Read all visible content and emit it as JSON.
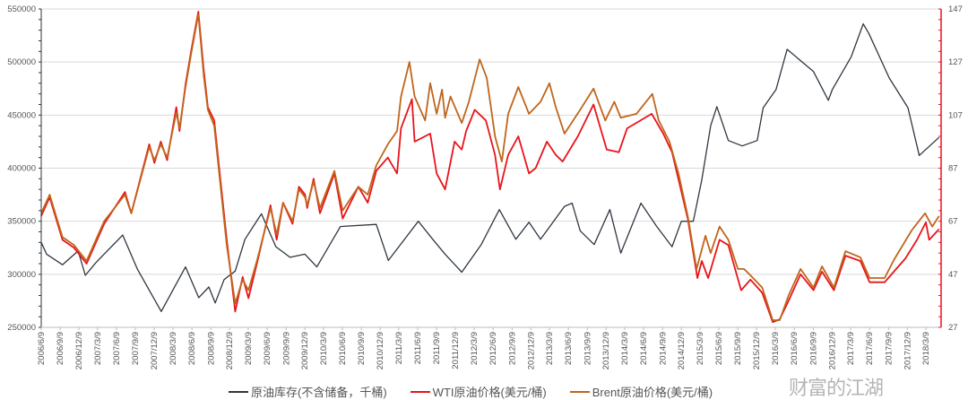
{
  "chart_data": {
    "type": "line",
    "title": "",
    "xlabel": "",
    "ylabel_left": "",
    "ylabel_right": "",
    "y_left_lim": [
      250000,
      550000
    ],
    "y_left_ticks": [
      "250000",
      "300000",
      "350000",
      "400000",
      "450000",
      "500000",
      "550000"
    ],
    "y_right_lim": [
      27,
      147
    ],
    "y_right_ticks": [
      "27",
      "47",
      "67",
      "87",
      "107",
      "127",
      "147"
    ],
    "x_range": [
      "2006-06-09",
      "2018-03-09"
    ],
    "x_ticks": [
      "2006/6/9",
      "2006/9/9",
      "2006/12/9",
      "2007/3/9",
      "2007/6/9",
      "2007/9/9",
      "2007/12/9",
      "2008/3/9",
      "2008/6/9",
      "2008/9/9",
      "2008/12/9",
      "2009/3/9",
      "2009/6/9",
      "2009/9/9",
      "2009/12/9",
      "2010/3/9",
      "2010/6/9",
      "2010/9/9",
      "2010/12/9",
      "2011/3/9",
      "2011/6/9",
      "2011/9/9",
      "2011/12/9",
      "2012/3/9",
      "2012/6/9",
      "2012/9/9",
      "2012/12/9",
      "2013/3/9",
      "2013/6/9",
      "2013/9/9",
      "2013/12/9",
      "2014/3/9",
      "2014/6/9",
      "2014/9/9",
      "2014/12/9",
      "2015/3/9",
      "2015/6/9",
      "2015/9/9",
      "2015/12/9",
      "2016/3/9",
      "2016/6/9",
      "2016/9/9",
      "2016/12/9",
      "2017/3/9",
      "2017/6/9",
      "2017/9/9",
      "2017/12/9",
      "2018/3/9"
    ],
    "grid": true,
    "legend_position": "bottom",
    "series": [
      {
        "name": "原油库存(不含储备，千桶)",
        "axis": "left",
        "color": "#2f3640",
        "points": [
          [
            "2006-06-09",
            330000
          ],
          [
            "2006-07-05",
            319000
          ],
          [
            "2006-09-20",
            309000
          ],
          [
            "2006-12-05",
            322000
          ],
          [
            "2007-01-09",
            299000
          ],
          [
            "2007-03-01",
            311000
          ],
          [
            "2007-07-09",
            337000
          ],
          [
            "2007-09-18",
            305000
          ],
          [
            "2008-01-12",
            265000
          ],
          [
            "2008-05-09",
            307000
          ],
          [
            "2008-07-12",
            278000
          ],
          [
            "2008-08-30",
            288000
          ],
          [
            "2008-09-30",
            273000
          ],
          [
            "2008-11-12",
            295000
          ],
          [
            "2009-01-05",
            303000
          ],
          [
            "2009-02-21",
            333000
          ],
          [
            "2009-05-12",
            357000
          ],
          [
            "2009-07-21",
            326000
          ],
          [
            "2009-09-28",
            316000
          ],
          [
            "2009-12-09",
            319000
          ],
          [
            "2010-02-05",
            307000
          ],
          [
            "2010-05-30",
            345000
          ],
          [
            "2010-11-20",
            347000
          ],
          [
            "2011-01-18",
            313000
          ],
          [
            "2011-06-12",
            350000
          ],
          [
            "2011-08-21",
            333000
          ],
          [
            "2011-10-20",
            319000
          ],
          [
            "2012-01-09",
            302000
          ],
          [
            "2012-04-12",
            328000
          ],
          [
            "2012-07-09",
            361000
          ],
          [
            "2012-09-27",
            333000
          ],
          [
            "2012-11-30",
            349000
          ],
          [
            "2013-01-25",
            333000
          ],
          [
            "2013-05-21",
            364000
          ],
          [
            "2013-06-27",
            367000
          ],
          [
            "2013-08-05",
            341000
          ],
          [
            "2013-10-12",
            328000
          ],
          [
            "2013-12-27",
            361000
          ],
          [
            "2014-02-18",
            320000
          ],
          [
            "2014-05-27",
            367000
          ],
          [
            "2014-08-12",
            345000
          ],
          [
            "2014-10-25",
            326000
          ],
          [
            "2014-12-09",
            350000
          ],
          [
            "2015-02-05",
            350000
          ],
          [
            "2015-03-18",
            389000
          ],
          [
            "2015-04-30",
            440000
          ],
          [
            "2015-05-30",
            458000
          ],
          [
            "2015-07-25",
            426000
          ],
          [
            "2015-09-30",
            421000
          ],
          [
            "2015-12-12",
            426000
          ],
          [
            "2016-01-10",
            457000
          ],
          [
            "2016-03-12",
            474000
          ],
          [
            "2016-05-05",
            512000
          ],
          [
            "2016-09-10",
            491000
          ],
          [
            "2016-11-21",
            464000
          ],
          [
            "2016-12-10",
            474000
          ],
          [
            "2017-03-12",
            505000
          ],
          [
            "2017-05-09",
            536000
          ],
          [
            "2017-06-05",
            527000
          ],
          [
            "2017-09-12",
            485000
          ],
          [
            "2017-12-12",
            457000
          ],
          [
            "2018-02-05",
            412000
          ],
          [
            "2018-05-12",
            429000
          ]
        ]
      },
      {
        "name": "WTI原油价格(美元/桶)",
        "axis": "right",
        "color": "#e8141b",
        "points": [
          [
            "2006-06-09",
            69
          ],
          [
            "2006-07-20",
            76
          ],
          [
            "2006-09-20",
            60
          ],
          [
            "2006-11-15",
            57
          ],
          [
            "2007-01-15",
            51
          ],
          [
            "2007-04-10",
            66
          ],
          [
            "2007-07-20",
            78
          ],
          [
            "2007-08-20",
            70
          ],
          [
            "2007-11-15",
            96
          ],
          [
            "2007-12-10",
            89
          ],
          [
            "2008-01-10",
            97
          ],
          [
            "2008-02-10",
            90
          ],
          [
            "2008-03-25",
            110
          ],
          [
            "2008-04-10",
            101
          ],
          [
            "2008-05-10",
            119
          ],
          [
            "2008-06-05",
            131
          ],
          [
            "2008-07-10",
            146
          ],
          [
            "2008-08-05",
            124
          ],
          [
            "2008-08-25",
            110
          ],
          [
            "2008-09-25",
            105
          ],
          [
            "2008-10-10",
            94
          ],
          [
            "2008-11-25",
            60
          ],
          [
            "2009-01-05",
            33
          ],
          [
            "2009-02-10",
            46
          ],
          [
            "2009-03-10",
            38
          ],
          [
            "2009-04-20",
            51
          ],
          [
            "2009-06-25",
            73
          ],
          [
            "2009-07-25",
            60
          ],
          [
            "2009-08-25",
            74
          ],
          [
            "2009-10-10",
            66
          ],
          [
            "2009-11-10",
            80
          ],
          [
            "2009-12-10",
            77
          ],
          [
            "2009-12-20",
            72
          ],
          [
            "2010-01-20",
            83
          ],
          [
            "2010-02-20",
            70
          ],
          [
            "2010-05-01",
            85
          ],
          [
            "2010-06-10",
            68
          ],
          [
            "2010-08-25",
            80
          ],
          [
            "2010-10-10",
            74
          ],
          [
            "2010-11-20",
            86
          ],
          [
            "2011-01-15",
            91
          ],
          [
            "2011-03-01",
            85
          ],
          [
            "2011-03-20",
            102
          ],
          [
            "2011-05-12",
            113
          ],
          [
            "2011-05-25",
            97
          ],
          [
            "2011-08-09",
            100
          ],
          [
            "2011-09-09",
            85
          ],
          [
            "2011-10-20",
            79
          ],
          [
            "2011-12-05",
            97
          ],
          [
            "2012-01-09",
            94
          ],
          [
            "2012-01-30",
            101
          ],
          [
            "2012-03-12",
            109
          ],
          [
            "2012-05-05",
            105
          ],
          [
            "2012-06-18",
            92
          ],
          [
            "2012-07-12",
            79
          ],
          [
            "2012-08-21",
            92
          ],
          [
            "2012-10-09",
            99
          ],
          [
            "2012-11-30",
            85
          ],
          [
            "2013-01-01",
            87
          ],
          [
            "2013-02-25",
            97
          ],
          [
            "2013-04-09",
            92
          ],
          [
            "2013-05-12",
            89.5
          ],
          [
            "2013-07-25",
            99
          ],
          [
            "2013-10-09",
            111
          ],
          [
            "2013-12-12",
            94
          ],
          [
            "2014-02-09",
            93
          ],
          [
            "2014-03-21",
            102
          ],
          [
            "2014-07-18",
            107.5
          ],
          [
            "2014-09-12",
            100
          ],
          [
            "2014-10-25",
            93
          ],
          [
            "2015-01-09",
            68
          ],
          [
            "2015-02-25",
            45.6
          ],
          [
            "2015-03-18",
            52
          ],
          [
            "2015-04-18",
            45.6
          ],
          [
            "2015-06-12",
            60
          ],
          [
            "2015-07-25",
            58
          ],
          [
            "2015-09-25",
            41
          ],
          [
            "2015-11-09",
            45
          ],
          [
            "2016-01-05",
            40
          ],
          [
            "2016-02-25",
            29
          ],
          [
            "2016-03-30",
            30
          ],
          [
            "2016-05-12",
            37
          ],
          [
            "2016-07-09",
            47
          ],
          [
            "2016-09-10",
            41
          ],
          [
            "2016-10-21",
            48
          ],
          [
            "2016-12-18",
            41
          ],
          [
            "2017-02-12",
            54
          ],
          [
            "2017-04-25",
            52
          ],
          [
            "2017-06-09",
            44
          ],
          [
            "2017-08-21",
            44
          ],
          [
            "2017-10-05",
            48
          ],
          [
            "2017-11-30",
            53
          ],
          [
            "2018-01-25",
            60
          ],
          [
            "2018-03-09",
            66.6
          ],
          [
            "2018-03-25",
            60
          ],
          [
            "2018-05-12",
            64
          ]
        ]
      },
      {
        "name": "Brent原油价格(美元/桶)",
        "axis": "right",
        "color": "#c0651b",
        "points": [
          [
            "2006-06-09",
            70
          ],
          [
            "2006-07-20",
            77
          ],
          [
            "2006-09-20",
            61
          ],
          [
            "2006-11-15",
            58
          ],
          [
            "2007-01-15",
            52
          ],
          [
            "2007-04-10",
            67
          ],
          [
            "2007-07-20",
            77
          ],
          [
            "2007-08-20",
            70
          ],
          [
            "2007-11-15",
            95
          ],
          [
            "2007-12-10",
            90
          ],
          [
            "2008-01-10",
            96
          ],
          [
            "2008-02-10",
            91
          ],
          [
            "2008-03-25",
            108
          ],
          [
            "2008-04-10",
            102
          ],
          [
            "2008-05-10",
            118
          ],
          [
            "2008-06-05",
            130
          ],
          [
            "2008-07-10",
            145
          ],
          [
            "2008-08-05",
            122
          ],
          [
            "2008-08-25",
            109
          ],
          [
            "2008-09-25",
            103
          ],
          [
            "2008-10-10",
            92
          ],
          [
            "2008-11-25",
            58
          ],
          [
            "2009-01-05",
            36
          ],
          [
            "2009-02-10",
            45
          ],
          [
            "2009-03-10",
            41
          ],
          [
            "2009-04-20",
            52
          ],
          [
            "2009-06-25",
            72
          ],
          [
            "2009-07-25",
            62
          ],
          [
            "2009-08-25",
            74
          ],
          [
            "2009-10-10",
            67
          ],
          [
            "2009-11-10",
            79
          ],
          [
            "2009-12-10",
            76
          ],
          [
            "2009-12-20",
            73
          ],
          [
            "2010-01-20",
            82
          ],
          [
            "2010-02-20",
            72
          ],
          [
            "2010-05-01",
            86
          ],
          [
            "2010-06-10",
            71
          ],
          [
            "2010-08-25",
            80
          ],
          [
            "2010-10-10",
            77
          ],
          [
            "2010-11-20",
            88
          ],
          [
            "2011-01-15",
            96
          ],
          [
            "2011-03-01",
            101
          ],
          [
            "2011-03-20",
            114
          ],
          [
            "2011-04-30",
            127
          ],
          [
            "2011-05-25",
            114
          ],
          [
            "2011-07-15",
            105
          ],
          [
            "2011-08-09",
            119
          ],
          [
            "2011-09-09",
            107.5
          ],
          [
            "2011-10-05",
            116.6
          ],
          [
            "2011-10-20",
            106
          ],
          [
            "2011-11-15",
            114
          ],
          [
            "2012-01-09",
            104
          ],
          [
            "2012-02-12",
            112
          ],
          [
            "2012-04-05",
            128
          ],
          [
            "2012-05-09",
            121
          ],
          [
            "2012-06-18",
            99
          ],
          [
            "2012-07-21",
            89.5
          ],
          [
            "2012-08-21",
            107.5
          ],
          [
            "2012-10-09",
            117.6
          ],
          [
            "2012-11-30",
            107.5
          ],
          [
            "2013-01-25",
            112
          ],
          [
            "2013-03-09",
            119
          ],
          [
            "2013-04-09",
            110
          ],
          [
            "2013-05-21",
            100
          ],
          [
            "2013-08-05",
            109
          ],
          [
            "2013-10-09",
            117
          ],
          [
            "2013-12-05",
            105
          ],
          [
            "2014-01-18",
            112
          ],
          [
            "2014-02-18",
            106
          ],
          [
            "2014-05-05",
            107.5
          ],
          [
            "2014-07-21",
            115
          ],
          [
            "2014-08-21",
            105
          ],
          [
            "2014-10-12",
            97
          ],
          [
            "2014-11-25",
            85
          ],
          [
            "2015-01-09",
            69
          ],
          [
            "2015-02-21",
            49
          ],
          [
            "2015-04-05",
            61.5
          ],
          [
            "2015-04-30",
            55
          ],
          [
            "2015-06-12",
            65
          ],
          [
            "2015-07-25",
            60
          ],
          [
            "2015-09-09",
            49
          ],
          [
            "2015-10-09",
            49
          ],
          [
            "2015-11-09",
            46.6
          ],
          [
            "2016-01-05",
            42
          ],
          [
            "2016-02-25",
            29.7
          ],
          [
            "2016-03-30",
            29.7
          ],
          [
            "2016-05-12",
            39
          ],
          [
            "2016-07-09",
            49
          ],
          [
            "2016-09-10",
            42
          ],
          [
            "2016-10-21",
            50
          ],
          [
            "2016-12-18",
            42
          ],
          [
            "2017-02-12",
            55.7
          ],
          [
            "2017-04-25",
            53.4
          ],
          [
            "2017-06-09",
            45.6
          ],
          [
            "2017-08-21",
            45.6
          ],
          [
            "2017-10-05",
            52.4
          ],
          [
            "2017-12-30",
            63.5
          ],
          [
            "2018-03-05",
            70
          ],
          [
            "2018-04-09",
            65
          ],
          [
            "2018-05-12",
            69
          ]
        ]
      }
    ]
  },
  "legend": {
    "items": [
      "原油库存(不含储备，千桶)",
      "WTI原油价格(美元/桶)",
      "Brent原油价格(美元/桶)"
    ]
  },
  "watermark": "财富的江湖",
  "colors": {
    "grid": "#d9d9d9",
    "left_axis": "#2f3640",
    "right_axis": "#e8141b"
  }
}
